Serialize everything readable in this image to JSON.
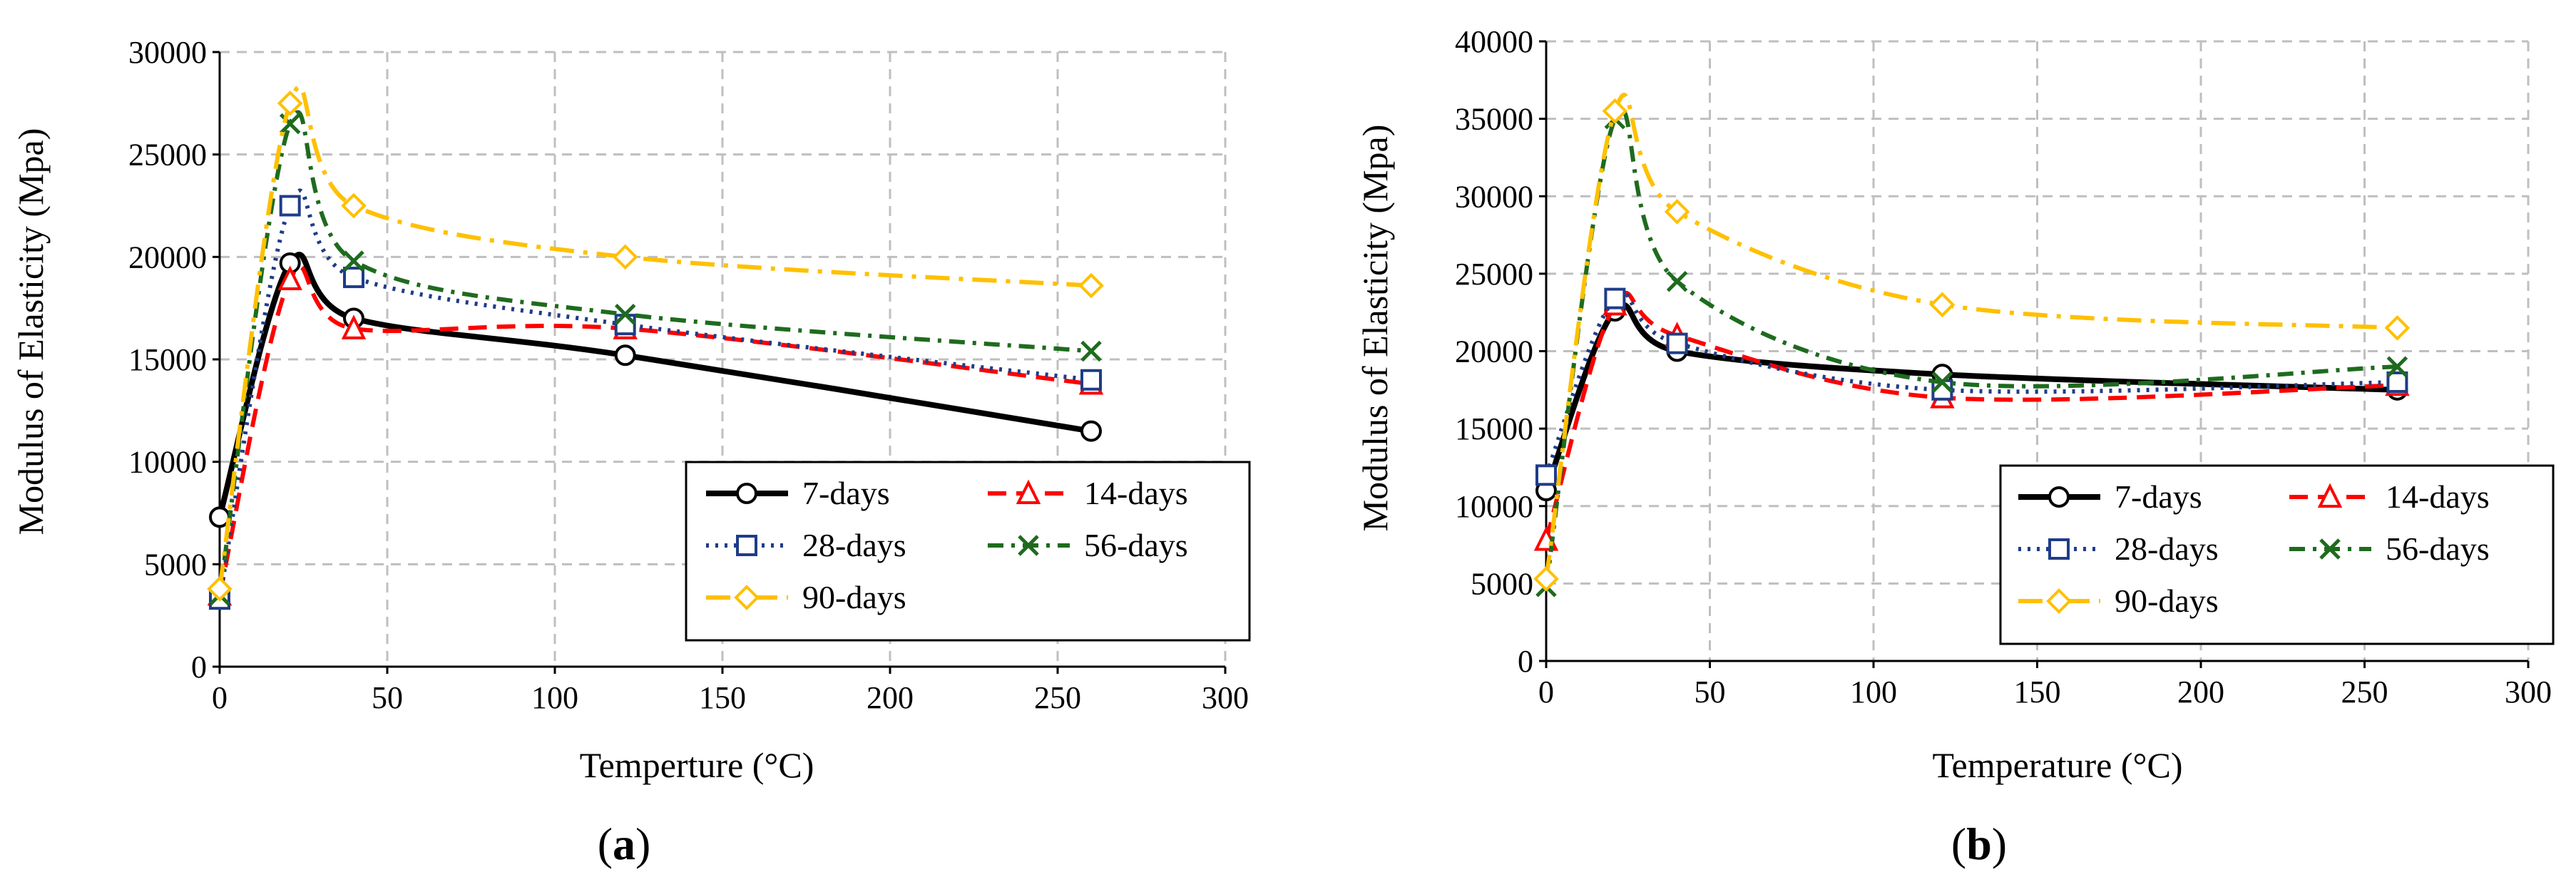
{
  "panels": [
    {
      "label_parts": [
        "(",
        "a",
        ")"
      ],
      "chart_data": {
        "type": "line",
        "xlabel": "Temperture (°C)",
        "ylabel": "Modulus of Elasticity (Mpa)",
        "xlim": [
          0,
          300
        ],
        "ylim": [
          0,
          30000
        ],
        "xticks": [
          0,
          50,
          100,
          150,
          200,
          250,
          300
        ],
        "yticks": [
          0,
          5000,
          10000,
          15000,
          20000,
          25000,
          30000
        ],
        "grid": true,
        "legend_position": "lower-right",
        "series": [
          {
            "name": "7-days",
            "color": "#000000",
            "dash": "solid",
            "marker": "circle",
            "x": [
              0,
              21,
              40,
              121,
              260
            ],
            "y": [
              7300,
              19700,
              17000,
              15200,
              11500
            ]
          },
          {
            "name": "14-days",
            "color": "#ff0000",
            "dash": "dash",
            "marker": "triangle",
            "x": [
              0,
              21,
              40,
              121,
              260
            ],
            "y": [
              3500,
              18900,
              16500,
              16500,
              13800
            ]
          },
          {
            "name": "28-days",
            "color": "#1f3c88",
            "dash": "dot",
            "marker": "square",
            "x": [
              0,
              21,
              40,
              121,
              260
            ],
            "y": [
              3300,
              22500,
              19000,
              16700,
              14000
            ]
          },
          {
            "name": "56-days",
            "color": "#1e6b1e",
            "dash": "dashdot",
            "marker": "x",
            "x": [
              0,
              21,
              40,
              121,
              260
            ],
            "y": [
              3500,
              26500,
              19800,
              17200,
              15400
            ]
          },
          {
            "name": "90-days",
            "color": "#ffc000",
            "dash": "longdashdot",
            "marker": "diamond",
            "x": [
              0,
              21,
              40,
              121,
              260
            ],
            "y": [
              3800,
              27500,
              22500,
              20000,
              18600
            ]
          }
        ]
      }
    },
    {
      "label_parts": [
        "(",
        "b",
        ")"
      ],
      "chart_data": {
        "type": "line",
        "xlabel": "Temperature (°C)",
        "ylabel": "Modulus of Elasticity (Mpa)",
        "xlim": [
          0,
          300
        ],
        "ylim": [
          0,
          40000
        ],
        "xticks": [
          0,
          50,
          100,
          150,
          200,
          250,
          300
        ],
        "yticks": [
          0,
          5000,
          10000,
          15000,
          20000,
          25000,
          30000,
          35000,
          40000
        ],
        "grid": true,
        "legend_position": "lower-right",
        "series": [
          {
            "name": "7-days",
            "color": "#000000",
            "dash": "solid",
            "marker": "circle",
            "x": [
              0,
              21,
              40,
              121,
              260
            ],
            "y": [
              11000,
              22600,
              20000,
              18500,
              17500
            ]
          },
          {
            "name": "14-days",
            "color": "#ff0000",
            "dash": "dash",
            "marker": "triangle",
            "x": [
              0,
              21,
              40,
              121,
              260
            ],
            "y": [
              7800,
              23000,
              21000,
              17000,
              17800
            ]
          },
          {
            "name": "28-days",
            "color": "#1f3c88",
            "dash": "dot",
            "marker": "square",
            "x": [
              0,
              21,
              40,
              121,
              260
            ],
            "y": [
              12000,
              23400,
              20500,
              17500,
              18000
            ]
          },
          {
            "name": "56-days",
            "color": "#1e6b1e",
            "dash": "dashdot",
            "marker": "x",
            "x": [
              0,
              21,
              40,
              121,
              260
            ],
            "y": [
              4800,
              35000,
              24500,
              18000,
              19000
            ]
          },
          {
            "name": "90-days",
            "color": "#ffc000",
            "dash": "longdashdot",
            "marker": "diamond",
            "x": [
              0,
              21,
              40,
              121,
              260
            ],
            "y": [
              5300,
              35500,
              29000,
              23000,
              21500
            ]
          }
        ]
      }
    }
  ]
}
